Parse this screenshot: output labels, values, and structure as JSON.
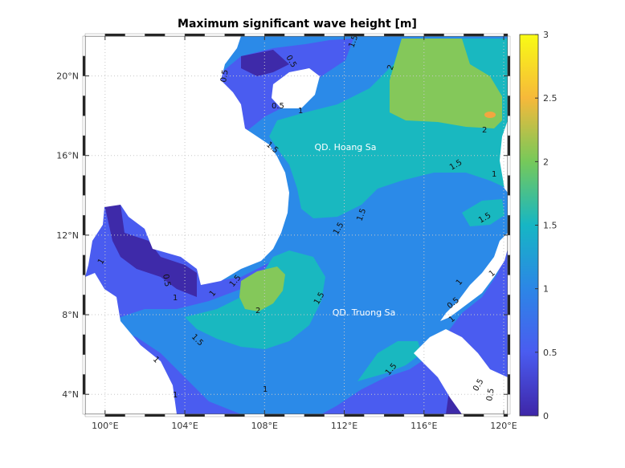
{
  "chart_data": {
    "type": "heatmap",
    "title": "Maximum significant wave height [m]",
    "xlabel": "",
    "ylabel": "",
    "xlim": [
      99,
      120.2
    ],
    "ylim": [
      3,
      22
    ],
    "x_ticks": [
      "100°E",
      "104°E",
      "108°E",
      "112°E",
      "116°E",
      "120°E"
    ],
    "y_ticks": [
      "4°N",
      "8°N",
      "12°N",
      "16°N",
      "20°N"
    ],
    "grid": true,
    "colorbar": {
      "position": "right",
      "range": [
        0,
        3
      ],
      "tick_labels": [
        "0",
        "0.5",
        "1",
        "1.5",
        "2",
        "2.5",
        "3"
      ],
      "colors": [
        "#3e26a8",
        "#4a5cf0",
        "#2c86e6",
        "#16b6c4",
        "#76c95a",
        "#f6b93a",
        "#f9fb15"
      ]
    },
    "levels": [
      {
        "value": 0.5,
        "color": "#3e2aa9"
      },
      {
        "value": 1.0,
        "color": "#4a5cf0"
      },
      {
        "value": 1.5,
        "color": "#2b8ae8"
      },
      {
        "value": 1.75,
        "color": "#19b8c0"
      },
      {
        "value": 2.0,
        "color": "#84c85a"
      },
      {
        "value": 2.5,
        "color": "#f3a640"
      }
    ],
    "contour_labels": [
      "0.5",
      "1",
      "1.5",
      "2"
    ],
    "annotations": [
      "QD. Hoang Sa",
      "QD. Truong Sa"
    ]
  }
}
